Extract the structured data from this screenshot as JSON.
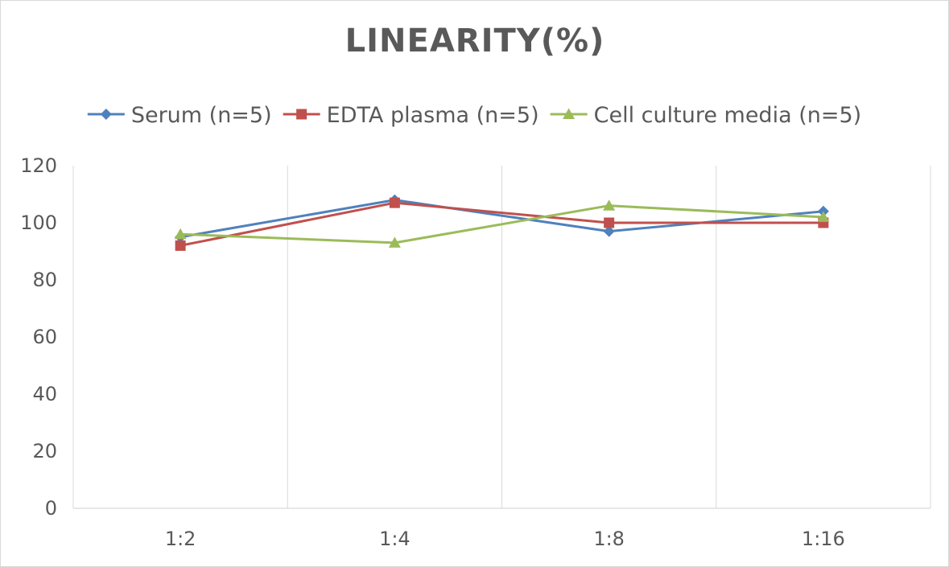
{
  "chart_data": {
    "type": "line",
    "title": "LINEARITY(%)",
    "categories": [
      "1:2",
      "1:4",
      "1:8",
      "1:16"
    ],
    "ylim": [
      0,
      120
    ],
    "yticks": [
      0,
      20,
      40,
      60,
      80,
      100,
      120
    ],
    "grid": "vertical",
    "legend": "top",
    "series": [
      {
        "name": "Serum (n=5)",
        "values": [
          95,
          108,
          97,
          104
        ],
        "color": "#4f81bd",
        "marker": "diamond"
      },
      {
        "name": "EDTA plasma (n=5)",
        "values": [
          92,
          107,
          100,
          100
        ],
        "color": "#c0504d",
        "marker": "square"
      },
      {
        "name": "Cell culture media (n=5)",
        "values": [
          96,
          93,
          106,
          102
        ],
        "color": "#9bbb59",
        "marker": "triangle"
      }
    ]
  }
}
